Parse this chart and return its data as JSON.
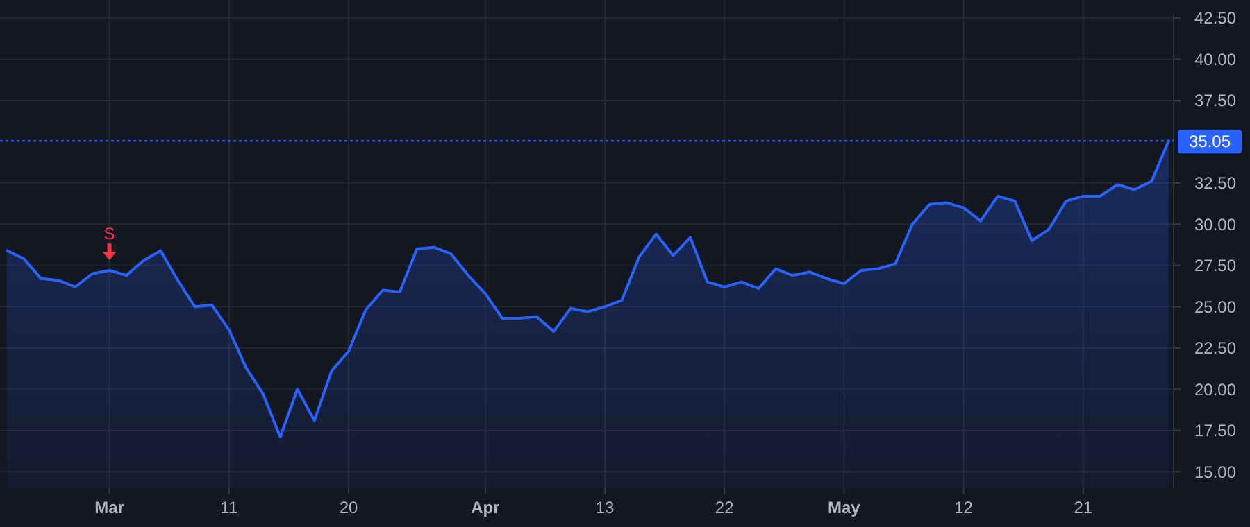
{
  "chart_data": {
    "type": "area",
    "categories": [
      null,
      null,
      null,
      null,
      null,
      null,
      "Mar",
      null,
      null,
      null,
      null,
      null,
      null,
      "11",
      null,
      null,
      null,
      null,
      null,
      null,
      "20",
      null,
      null,
      null,
      null,
      null,
      null,
      null,
      "Apr",
      null,
      null,
      null,
      null,
      null,
      null,
      "13",
      null,
      null,
      null,
      null,
      null,
      null,
      "22",
      null,
      null,
      null,
      null,
      null,
      null,
      "May",
      null,
      null,
      null,
      null,
      null,
      null,
      "12",
      null,
      null,
      null,
      null,
      null,
      null,
      "21",
      null,
      null,
      null,
      null,
      null
    ],
    "series": [
      {
        "color": "#2962ff",
        "values": [
          28.4,
          27.9,
          26.7,
          26.6,
          26.2,
          27.0,
          27.2,
          26.9,
          27.8,
          28.4,
          26.6,
          25.0,
          25.1,
          23.6,
          21.3,
          19.7,
          17.1,
          20.0,
          18.1,
          21.1,
          22.3,
          24.8,
          26.0,
          25.9,
          28.5,
          28.6,
          28.2,
          26.9,
          25.8,
          24.3,
          24.3,
          24.4,
          23.5,
          24.9,
          24.7,
          25.0,
          25.4,
          28.0,
          29.4,
          28.1,
          29.2,
          26.5,
          26.2,
          26.5,
          26.1,
          27.3,
          26.9,
          27.1,
          26.7,
          26.4,
          27.2,
          27.3,
          27.6,
          30.0,
          31.2,
          31.3,
          31.0,
          30.2,
          31.7,
          31.4,
          29.0,
          29.7,
          31.4,
          31.7,
          31.7,
          32.4,
          32.1,
          32.6,
          35.05
        ]
      }
    ],
    "ylim": [
      14,
      42.75
    ],
    "yticks": [
      {
        "value": 15,
        "label": "15.00"
      },
      {
        "value": 17.5,
        "label": "17.50"
      },
      {
        "value": 20,
        "label": "20.00"
      },
      {
        "value": 22.5,
        "label": "22.50"
      },
      {
        "value": 25,
        "label": "25.00"
      },
      {
        "value": 27.5,
        "label": "27.50"
      },
      {
        "value": 30,
        "label": "30.00"
      },
      {
        "value": 32.5,
        "label": "32.50"
      },
      {
        "value": 37.5,
        "label": "37.50"
      },
      {
        "value": 40,
        "label": "40.00"
      },
      {
        "value": 42.5,
        "label": "42.50"
      }
    ],
    "grid": true,
    "ref_lines": [
      {
        "axis": "y",
        "value": 35.05,
        "label": "35.05",
        "color": "#2962ff",
        "line_style": "dotted"
      }
    ],
    "annotations": [
      {
        "text": "S",
        "x": "Mar",
        "y": 27.23
      }
    ]
  }
}
